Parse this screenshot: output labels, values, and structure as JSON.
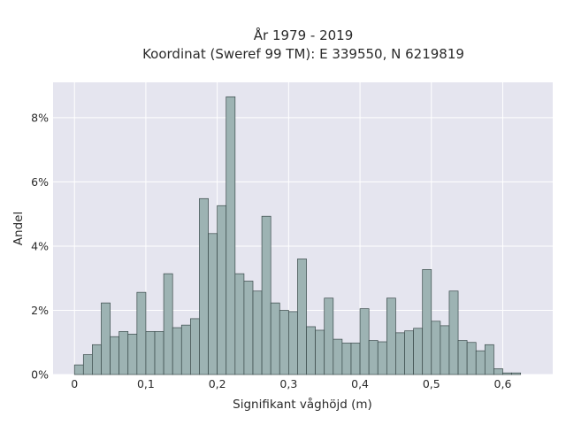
{
  "chart_data": {
    "type": "bar",
    "title_line1": "År 1979 - 2019",
    "title_line2": "Koordinat (Sweref 99 TM): E 339550, N 6219819",
    "xlabel": "Signifikant våghöjd (m)",
    "ylabel": "Andel",
    "xlim": [
      -0.03,
      0.67
    ],
    "ylim": [
      0,
      9.1
    ],
    "grid": true,
    "x_ticks": [
      0,
      0.1,
      0.2,
      0.3,
      0.4,
      0.5,
      0.6
    ],
    "x_tick_labels": [
      "0",
      "0,1",
      "0,2",
      "0,3",
      "0,4",
      "0,5",
      "0,6"
    ],
    "y_ticks": [
      0,
      2,
      4,
      6,
      8
    ],
    "y_tick_labels": [
      "0%",
      "2%",
      "4%",
      "6%",
      "8%"
    ],
    "bin_width": 0.0125,
    "bin_start": 0,
    "values": [
      0.3,
      0.62,
      0.93,
      2.23,
      1.18,
      1.34,
      1.26,
      2.56,
      1.34,
      1.34,
      3.14,
      1.46,
      1.54,
      1.74,
      5.48,
      4.39,
      5.26,
      8.65,
      3.14,
      2.91,
      2.6,
      4.93,
      2.23,
      2.0,
      1.96,
      3.6,
      1.49,
      1.38,
      2.38,
      1.1,
      0.98,
      0.98,
      2.05,
      1.06,
      1.02,
      2.38,
      1.3,
      1.36,
      1.44,
      3.27,
      1.66,
      1.52,
      2.6,
      1.06,
      1.0,
      0.74,
      0.93,
      0.18,
      0.05,
      0.05
    ]
  },
  "colors": {
    "plot_bg": "#e5e5ef",
    "grid": "#ffffff",
    "bar_fill": "#9db3b3",
    "bar_stroke": "#3a4a4a",
    "text": "#2a2a2a"
  }
}
